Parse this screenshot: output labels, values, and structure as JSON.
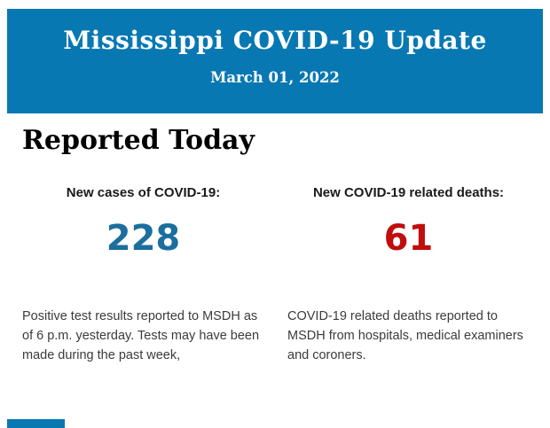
{
  "header": {
    "title": "Mississippi COVID-19 Update",
    "date": "March 01, 2022",
    "background_color": "#0878B2",
    "text_color": "#FFFFFF"
  },
  "section": {
    "title": "Reported Today"
  },
  "stats": {
    "0": {
      "label": "New cases of COVID-19:",
      "value": "228",
      "value_color": "#1B6E9E",
      "description": "Positive test results reported to MSDH as of 6 p.m. yesterday. Tests may have been made during the past week,"
    },
    "1": {
      "label": "New COVID-19 related deaths:",
      "value": "61",
      "value_color": "#C10D0D",
      "description": "COVID-19 related deaths reported to MSDH from hospitals, medical examiners and coroners."
    }
  },
  "footer": {
    "next_banner_color": "#0878B2"
  }
}
